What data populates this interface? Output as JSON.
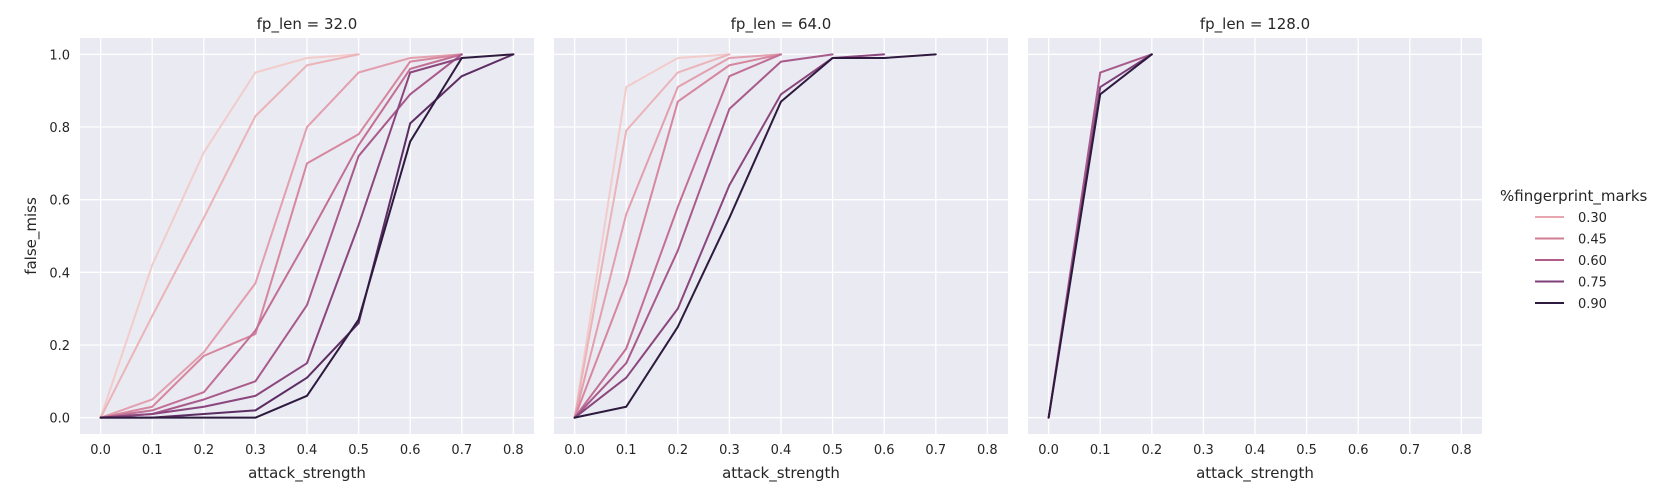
{
  "chart_data": {
    "type": "line",
    "layout": "facet-columns",
    "xlabel": "attack_strength",
    "ylabel": "false_miss",
    "xlim": [
      -0.04,
      0.84
    ],
    "ylim": [
      -0.045,
      1.045
    ],
    "xticks": [
      0.0,
      0.1,
      0.2,
      0.3,
      0.4,
      0.5,
      0.6,
      0.7,
      0.8
    ],
    "yticks": [
      0.0,
      0.2,
      0.4,
      0.6,
      0.8,
      1.0
    ],
    "xtick_labels": [
      "0.0",
      "0.1",
      "0.2",
      "0.3",
      "0.4",
      "0.5",
      "0.6",
      "0.7",
      "0.8"
    ],
    "ytick_labels": [
      "0.0",
      "0.2",
      "0.4",
      "0.6",
      "0.8",
      "1.0"
    ],
    "grid": true,
    "legend": {
      "title": "%fingerprint_marks",
      "placement": "right",
      "entries": [
        {
          "label": "0.30",
          "color": "#e8a7b0"
        },
        {
          "label": "0.45",
          "color": "#d27d95"
        },
        {
          "label": "0.60",
          "color": "#b05d8a"
        },
        {
          "label": "0.75",
          "color": "#7c3f78"
        },
        {
          "label": "0.90",
          "color": "#2d1a3e"
        }
      ]
    },
    "panels": [
      {
        "title": "fp_len = 32.0",
        "series": [
          {
            "hue": 0.1,
            "color": "#f2cccb",
            "x": [
              0.0,
              0.1,
              0.2,
              0.3,
              0.4,
              0.5
            ],
            "y": [
              0.0,
              0.42,
              0.73,
              0.95,
              0.99,
              1.0
            ]
          },
          {
            "hue": 0.2,
            "color": "#eab4b8",
            "x": [
              0.0,
              0.1,
              0.2,
              0.3,
              0.4,
              0.5
            ],
            "y": [
              0.0,
              0.28,
              0.55,
              0.83,
              0.97,
              1.0
            ]
          },
          {
            "hue": 0.3,
            "color": "#e29fae",
            "x": [
              0.0,
              0.1,
              0.2,
              0.3,
              0.4,
              0.5,
              0.6,
              0.7
            ],
            "y": [
              0.0,
              0.05,
              0.18,
              0.37,
              0.8,
              0.95,
              0.99,
              1.0
            ]
          },
          {
            "hue": 0.4,
            "color": "#d6879f",
            "x": [
              0.0,
              0.1,
              0.2,
              0.3,
              0.4,
              0.5,
              0.6,
              0.7
            ],
            "y": [
              0.0,
              0.03,
              0.17,
              0.23,
              0.7,
              0.78,
              0.98,
              1.0
            ]
          },
          {
            "hue": 0.5,
            "color": "#c26f95",
            "x": [
              0.0,
              0.1,
              0.2,
              0.3,
              0.4,
              0.5,
              0.6,
              0.7
            ],
            "y": [
              0.0,
              0.02,
              0.07,
              0.24,
              0.49,
              0.75,
              0.96,
              1.0
            ]
          },
          {
            "hue": 0.6,
            "color": "#a85a8b",
            "x": [
              0.0,
              0.1,
              0.2,
              0.3,
              0.4,
              0.5,
              0.6,
              0.7
            ],
            "y": [
              0.0,
              0.01,
              0.05,
              0.1,
              0.31,
              0.72,
              0.89,
              1.0
            ]
          },
          {
            "hue": 0.7,
            "color": "#8a467d",
            "x": [
              0.0,
              0.1,
              0.2,
              0.3,
              0.4,
              0.5,
              0.6,
              0.7
            ],
            "y": [
              0.0,
              0.01,
              0.03,
              0.06,
              0.15,
              0.53,
              0.95,
              0.99
            ]
          },
          {
            "hue": 0.8,
            "color": "#5c2d63",
            "x": [
              0.0,
              0.1,
              0.2,
              0.3,
              0.4,
              0.5,
              0.6,
              0.7,
              0.8
            ],
            "y": [
              0.0,
              0.0,
              0.01,
              0.02,
              0.11,
              0.26,
              0.81,
              0.94,
              1.0
            ]
          },
          {
            "hue": 0.9,
            "color": "#2d1a3e",
            "x": [
              0.0,
              0.1,
              0.2,
              0.3,
              0.4,
              0.5,
              0.6,
              0.7,
              0.8
            ],
            "y": [
              0.0,
              0.0,
              0.0,
              0.0,
              0.06,
              0.27,
              0.76,
              0.99,
              1.0
            ]
          }
        ]
      },
      {
        "title": "fp_len = 64.0",
        "series": [
          {
            "hue": 0.1,
            "color": "#f2cccb",
            "x": [
              0.0,
              0.1,
              0.2,
              0.3
            ],
            "y": [
              0.0,
              0.91,
              0.99,
              1.0
            ]
          },
          {
            "hue": 0.2,
            "color": "#eab4b8",
            "x": [
              0.0,
              0.1,
              0.2,
              0.3
            ],
            "y": [
              0.0,
              0.79,
              0.95,
              1.0
            ]
          },
          {
            "hue": 0.3,
            "color": "#e29fae",
            "x": [
              0.0,
              0.1,
              0.2,
              0.3,
              0.4
            ],
            "y": [
              0.0,
              0.56,
              0.91,
              0.99,
              1.0
            ]
          },
          {
            "hue": 0.4,
            "color": "#d6879f",
            "x": [
              0.0,
              0.1,
              0.2,
              0.3,
              0.4
            ],
            "y": [
              0.0,
              0.37,
              0.87,
              0.97,
              1.0
            ]
          },
          {
            "hue": 0.5,
            "color": "#c26f95",
            "x": [
              0.0,
              0.1,
              0.2,
              0.3,
              0.4
            ],
            "y": [
              0.0,
              0.19,
              0.58,
              0.94,
              1.0
            ]
          },
          {
            "hue": 0.6,
            "color": "#a85a8b",
            "x": [
              0.0,
              0.1,
              0.2,
              0.3,
              0.4,
              0.5
            ],
            "y": [
              0.0,
              0.15,
              0.46,
              0.85,
              0.98,
              1.0
            ]
          },
          {
            "hue": 0.7,
            "color": "#8a467d",
            "x": [
              0.0,
              0.1,
              0.2,
              0.3,
              0.4,
              0.5,
              0.6
            ],
            "y": [
              0.0,
              0.11,
              0.3,
              0.64,
              0.89,
              0.99,
              1.0
            ]
          },
          {
            "hue": 0.9,
            "color": "#2d1a3e",
            "x": [
              0.0,
              0.1,
              0.2,
              0.3,
              0.4,
              0.5,
              0.6,
              0.7
            ],
            "y": [
              0.0,
              0.03,
              0.25,
              0.55,
              0.87,
              0.99,
              0.99,
              1.0
            ]
          }
        ]
      },
      {
        "title": "fp_len = 128.0",
        "series": [
          {
            "hue": 0.6,
            "color": "#a85a8b",
            "x": [
              0.0,
              0.1,
              0.2
            ],
            "y": [
              0.0,
              0.95,
              1.0
            ]
          },
          {
            "hue": 0.75,
            "color": "#7c3f78",
            "x": [
              0.0,
              0.1,
              0.2
            ],
            "y": [
              0.0,
              0.91,
              1.0
            ]
          },
          {
            "hue": 0.9,
            "color": "#2d1a3e",
            "x": [
              0.0,
              0.1,
              0.2
            ],
            "y": [
              0.0,
              0.89,
              1.0
            ]
          }
        ]
      }
    ]
  }
}
